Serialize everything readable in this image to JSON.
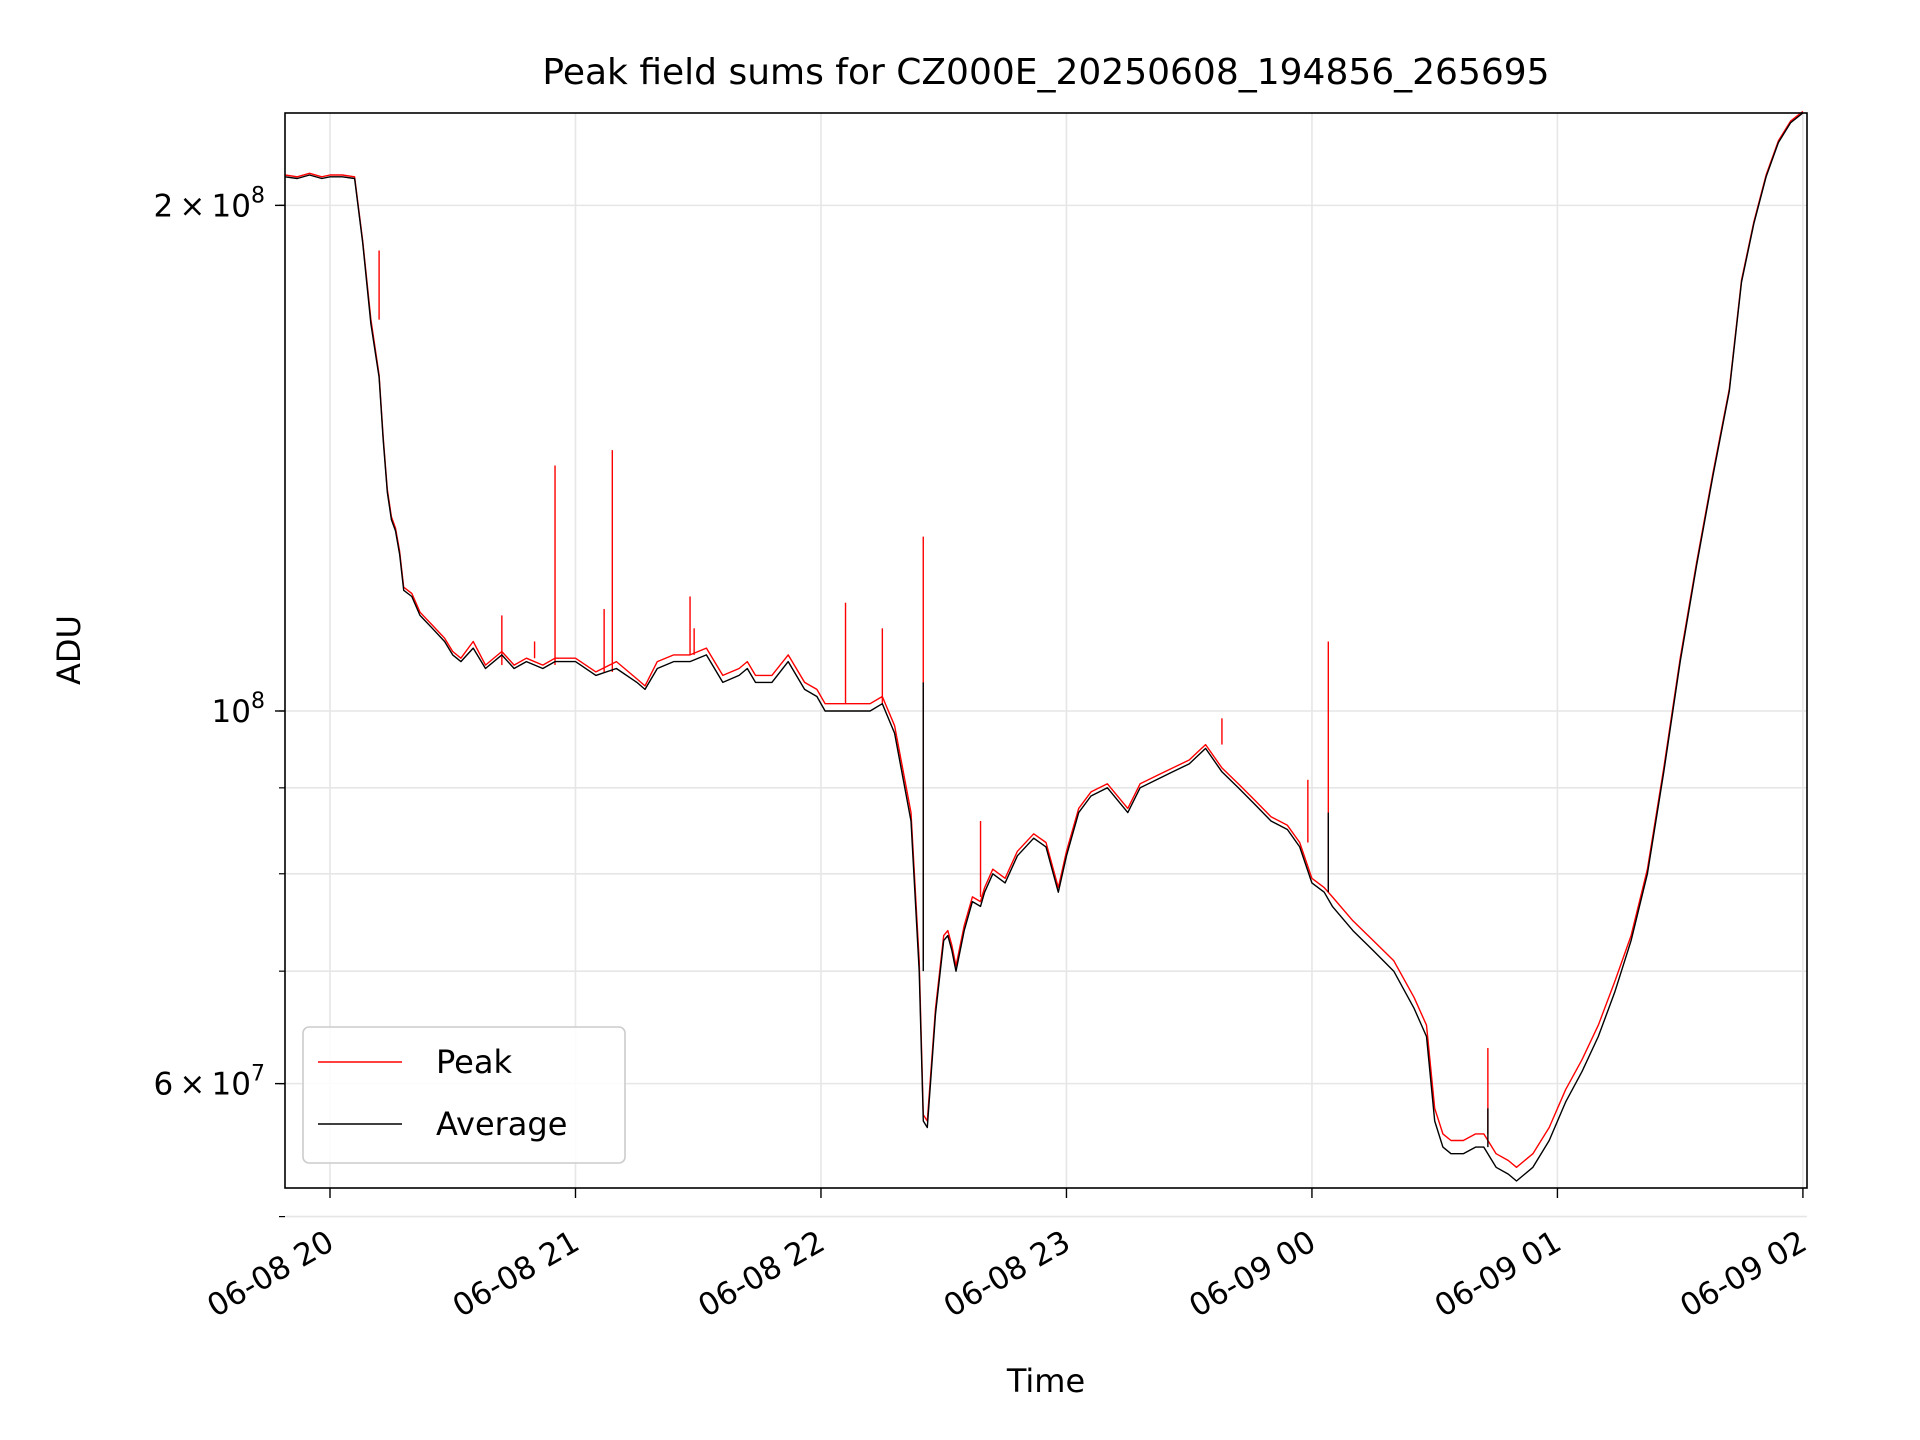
{
  "chart_data": {
    "type": "line",
    "title": "Peak field sums for CZ000E_20250608_194856_265695",
    "xlabel": "Time",
    "ylabel": "ADU",
    "yscale": "log",
    "xlim": [
      "2025-06-08 19:49",
      "2025-06-09 02:01"
    ],
    "ylim": [
      52000000,
      227000000
    ],
    "grid": true,
    "legend_position": "lower-left",
    "xticks": [
      {
        "value": "2025-06-08 20:00",
        "label": "06-08 20"
      },
      {
        "value": "2025-06-08 21:00",
        "label": "06-08 21"
      },
      {
        "value": "2025-06-08 22:00",
        "label": "06-08 22"
      },
      {
        "value": "2025-06-08 23:00",
        "label": "06-08 23"
      },
      {
        "value": "2025-06-09 00:00",
        "label": "06-09 00"
      },
      {
        "value": "2025-06-09 01:00",
        "label": "06-09 01"
      },
      {
        "value": "2025-06-09 02:00",
        "label": "06-09 02"
      }
    ],
    "yticks_major": [
      {
        "value": 200000000,
        "mantissa": "2",
        "exponent": "8"
      },
      {
        "value": 100000000,
        "mantissa": "",
        "exponent": "8"
      },
      {
        "value": 60000000,
        "mantissa": "6",
        "exponent": "7"
      }
    ],
    "yticks_minor": [
      200000000,
      100000000,
      90000000,
      80000000,
      70000000,
      60000000,
      50000000
    ],
    "times_sign": "×",
    "base": "10",
    "series": [
      {
        "name": "Average",
        "color": "#000000",
        "x": [
          "2025-06-08 19:49",
          "2025-06-08 19:52",
          "2025-06-08 19:55",
          "2025-06-08 19:58",
          "2025-06-08 20:00",
          "2025-06-08 20:03",
          "2025-06-08 20:06",
          "2025-06-08 20:08",
          "2025-06-08 20:10",
          "2025-06-08 20:12",
          "2025-06-08 20:13",
          "2025-06-08 20:14",
          "2025-06-08 20:15",
          "2025-06-08 20:16",
          "2025-06-08 20:17",
          "2025-06-08 20:18",
          "2025-06-08 20:20",
          "2025-06-08 20:22",
          "2025-06-08 20:25",
          "2025-06-08 20:28",
          "2025-06-08 20:30",
          "2025-06-08 20:32",
          "2025-06-08 20:35",
          "2025-06-08 20:38",
          "2025-06-08 20:42",
          "2025-06-08 20:45",
          "2025-06-08 20:48",
          "2025-06-08 20:52",
          "2025-06-08 20:55",
          "2025-06-08 21:00",
          "2025-06-08 21:05",
          "2025-06-08 21:10",
          "2025-06-08 21:15",
          "2025-06-08 21:17",
          "2025-06-08 21:20",
          "2025-06-08 21:24",
          "2025-06-08 21:28",
          "2025-06-08 21:32",
          "2025-06-08 21:36",
          "2025-06-08 21:40",
          "2025-06-08 21:42",
          "2025-06-08 21:44",
          "2025-06-08 21:48",
          "2025-06-08 21:52",
          "2025-06-08 21:56",
          "2025-06-08 21:59",
          "2025-06-08 22:01",
          "2025-06-08 22:04",
          "2025-06-08 22:08",
          "2025-06-08 22:12",
          "2025-06-08 22:15",
          "2025-06-08 22:18",
          "2025-06-08 22:22",
          "2025-06-08 22:24",
          "2025-06-08 22:25",
          "2025-06-08 22:26",
          "2025-06-08 22:28",
          "2025-06-08 22:30",
          "2025-06-08 22:31",
          "2025-06-08 22:32",
          "2025-06-08 22:33",
          "2025-06-08 22:35",
          "2025-06-08 22:37",
          "2025-06-08 22:39",
          "2025-06-08 22:40",
          "2025-06-08 22:42",
          "2025-06-08 22:45",
          "2025-06-08 22:48",
          "2025-06-08 22:52",
          "2025-06-08 22:55",
          "2025-06-08 22:58",
          "2025-06-08 23:00",
          "2025-06-08 23:03",
          "2025-06-08 23:06",
          "2025-06-08 23:10",
          "2025-06-08 23:15",
          "2025-06-08 23:18",
          "2025-06-08 23:22",
          "2025-06-08 23:26",
          "2025-06-08 23:30",
          "2025-06-08 23:32",
          "2025-06-08 23:34",
          "2025-06-08 23:38",
          "2025-06-08 23:42",
          "2025-06-08 23:46",
          "2025-06-08 23:50",
          "2025-06-08 23:54",
          "2025-06-08 23:57",
          "2025-06-09 00:00",
          "2025-06-09 00:03",
          "2025-06-09 00:05",
          "2025-06-09 00:10",
          "2025-06-09 00:15",
          "2025-06-09 00:20",
          "2025-06-09 00:25",
          "2025-06-09 00:28",
          "2025-06-09 00:30",
          "2025-06-09 00:32",
          "2025-06-09 00:34",
          "2025-06-09 00:37",
          "2025-06-09 00:40",
          "2025-06-09 00:42",
          "2025-06-09 00:45",
          "2025-06-09 00:48",
          "2025-06-09 00:50",
          "2025-06-09 00:54",
          "2025-06-09 00:58",
          "2025-06-09 01:02",
          "2025-06-09 01:06",
          "2025-06-09 01:10",
          "2025-06-09 01:14",
          "2025-06-09 01:18",
          "2025-06-09 01:22",
          "2025-06-09 01:26",
          "2025-06-09 01:30",
          "2025-06-09 01:34",
          "2025-06-09 01:38",
          "2025-06-09 01:42",
          "2025-06-09 01:45",
          "2025-06-09 01:48",
          "2025-06-09 01:51",
          "2025-06-09 01:54",
          "2025-06-09 01:57",
          "2025-06-09 02:00"
        ],
        "values": [
          208000000,
          207500000,
          208500000,
          207500000,
          208000000,
          208000000,
          207500000,
          190000000,
          170000000,
          158000000,
          145000000,
          135000000,
          130000000,
          128000000,
          124000000,
          118000000,
          117000000,
          114000000,
          112000000,
          110000000,
          108000000,
          107000000,
          109000000,
          106000000,
          108000000,
          106000000,
          107000000,
          106000000,
          107000000,
          107000000,
          105000000,
          106000000,
          104000000,
          103000000,
          106000000,
          107000000,
          107000000,
          108000000,
          104000000,
          105000000,
          106000000,
          104000000,
          104000000,
          107000000,
          103000000,
          102000000,
          100000000,
          100000000,
          100000000,
          100000000,
          101000000,
          97000000,
          86000000,
          70000000,
          57000000,
          56500000,
          66000000,
          73000000,
          73500000,
          72000000,
          70000000,
          74000000,
          77000000,
          76500000,
          78000000,
          80000000,
          79000000,
          82000000,
          84000000,
          83000000,
          78000000,
          82000000,
          87000000,
          89000000,
          90000000,
          87000000,
          90000000,
          91000000,
          92000000,
          93000000,
          94000000,
          95000000,
          92000000,
          90000000,
          88000000,
          86000000,
          85000000,
          83000000,
          79000000,
          78000000,
          76500000,
          74000000,
          72000000,
          70000000,
          66500000,
          64000000,
          57000000,
          55000000,
          54500000,
          54500000,
          55000000,
          55000000,
          53500000,
          53000000,
          52500000,
          53500000,
          55500000,
          58500000,
          61000000,
          64000000,
          68000000,
          73000000,
          80000000,
          92000000,
          107000000,
          122000000,
          138000000,
          155000000,
          180000000,
          195000000,
          208000000,
          218000000,
          224000000,
          227000000
        ]
      },
      {
        "name": "Peak",
        "color": "#ff0000",
        "x": [
          "2025-06-08 19:49",
          "2025-06-08 19:52",
          "2025-06-08 19:55",
          "2025-06-08 19:58",
          "2025-06-08 20:00",
          "2025-06-08 20:03",
          "2025-06-08 20:06",
          "2025-06-08 20:08",
          "2025-06-08 20:10",
          "2025-06-08 20:12",
          "2025-06-08 20:13",
          "2025-06-08 20:14",
          "2025-06-08 20:15",
          "2025-06-08 20:16",
          "2025-06-08 20:17",
          "2025-06-08 20:18",
          "2025-06-08 20:20",
          "2025-06-08 20:22",
          "2025-06-08 20:25",
          "2025-06-08 20:28",
          "2025-06-08 20:30",
          "2025-06-08 20:32",
          "2025-06-08 20:35",
          "2025-06-08 20:38",
          "2025-06-08 20:42",
          "2025-06-08 20:45",
          "2025-06-08 20:48",
          "2025-06-08 20:52",
          "2025-06-08 20:55",
          "2025-06-08 21:00",
          "2025-06-08 21:05",
          "2025-06-08 21:10",
          "2025-06-08 21:15",
          "2025-06-08 21:17",
          "2025-06-08 21:20",
          "2025-06-08 21:24",
          "2025-06-08 21:28",
          "2025-06-08 21:32",
          "2025-06-08 21:36",
          "2025-06-08 21:40",
          "2025-06-08 21:42",
          "2025-06-08 21:44",
          "2025-06-08 21:48",
          "2025-06-08 21:52",
          "2025-06-08 21:56",
          "2025-06-08 21:59",
          "2025-06-08 22:01",
          "2025-06-08 22:04",
          "2025-06-08 22:08",
          "2025-06-08 22:12",
          "2025-06-08 22:15",
          "2025-06-08 22:18",
          "2025-06-08 22:22",
          "2025-06-08 22:24",
          "2025-06-08 22:25",
          "2025-06-08 22:26",
          "2025-06-08 22:28",
          "2025-06-08 22:30",
          "2025-06-08 22:31",
          "2025-06-08 22:32",
          "2025-06-08 22:33",
          "2025-06-08 22:35",
          "2025-06-08 22:37",
          "2025-06-08 22:39",
          "2025-06-08 22:40",
          "2025-06-08 22:42",
          "2025-06-08 22:45",
          "2025-06-08 22:48",
          "2025-06-08 22:52",
          "2025-06-08 22:55",
          "2025-06-08 22:58",
          "2025-06-08 23:00",
          "2025-06-08 23:03",
          "2025-06-08 23:06",
          "2025-06-08 23:10",
          "2025-06-08 23:15",
          "2025-06-08 23:18",
          "2025-06-08 23:22",
          "2025-06-08 23:26",
          "2025-06-08 23:30",
          "2025-06-08 23:32",
          "2025-06-08 23:34",
          "2025-06-08 23:38",
          "2025-06-08 23:42",
          "2025-06-08 23:46",
          "2025-06-08 23:50",
          "2025-06-08 23:54",
          "2025-06-08 23:57",
          "2025-06-09 00:00",
          "2025-06-09 00:03",
          "2025-06-09 00:05",
          "2025-06-09 00:10",
          "2025-06-09 00:15",
          "2025-06-09 00:20",
          "2025-06-09 00:25",
          "2025-06-09 00:28",
          "2025-06-09 00:30",
          "2025-06-09 00:32",
          "2025-06-09 00:34",
          "2025-06-09 00:37",
          "2025-06-09 00:40",
          "2025-06-09 00:42",
          "2025-06-09 00:45",
          "2025-06-09 00:48",
          "2025-06-09 00:50",
          "2025-06-09 00:54",
          "2025-06-09 00:58",
          "2025-06-09 01:02",
          "2025-06-09 01:06",
          "2025-06-09 01:10",
          "2025-06-09 01:14",
          "2025-06-09 01:18",
          "2025-06-09 01:22",
          "2025-06-09 01:26",
          "2025-06-09 01:30",
          "2025-06-09 01:34",
          "2025-06-09 01:38",
          "2025-06-09 01:42",
          "2025-06-09 01:45",
          "2025-06-09 01:48",
          "2025-06-09 01:51",
          "2025-06-09 01:54",
          "2025-06-09 01:57",
          "2025-06-09 02:00"
        ],
        "values": [
          208500000,
          208000000,
          209000000,
          208000000,
          208500000,
          208500000,
          208000000,
          190500000,
          171000000,
          158500000,
          145500000,
          135500000,
          130500000,
          128500000,
          124500000,
          118500000,
          117500000,
          114500000,
          112500000,
          110500000,
          108500000,
          107500000,
          110000000,
          106500000,
          108500000,
          106500000,
          107500000,
          106500000,
          107500000,
          107500000,
          105500000,
          107000000,
          104500000,
          103500000,
          107000000,
          108000000,
          108000000,
          109000000,
          105000000,
          106000000,
          107000000,
          105000000,
          105000000,
          108000000,
          104000000,
          103000000,
          101000000,
          101000000,
          101000000,
          101000000,
          102000000,
          98000000,
          87000000,
          71000000,
          57500000,
          57000000,
          66500000,
          73500000,
          74000000,
          72500000,
          70500000,
          74500000,
          77500000,
          77000000,
          78500000,
          80500000,
          79500000,
          82500000,
          84500000,
          83500000,
          78500000,
          82500000,
          87500000,
          89500000,
          90500000,
          87500000,
          90500000,
          91500000,
          92500000,
          93500000,
          94500000,
          95500000,
          92500000,
          90500000,
          88500000,
          86500000,
          85500000,
          83500000,
          79500000,
          78500000,
          77500000,
          75000000,
          73000000,
          71000000,
          67500000,
          65000000,
          58000000,
          56000000,
          55500000,
          55500000,
          56000000,
          56000000,
          54500000,
          54000000,
          53500000,
          54500000,
          56500000,
          59500000,
          62000000,
          65000000,
          69000000,
          73500000,
          80500000,
          92500000,
          107500000,
          122500000,
          138500000,
          155500000,
          180500000,
          195500000,
          208500000,
          218500000,
          224500000,
          227500000
        ]
      }
    ],
    "spikes": [
      {
        "series": "Peak",
        "x": "2025-06-08 20:12",
        "value": 188000000
      },
      {
        "series": "Peak",
        "x": "2025-06-08 20:42",
        "value": 114000000
      },
      {
        "series": "Peak",
        "x": "2025-06-08 20:50",
        "value": 110000000
      },
      {
        "series": "Peak",
        "x": "2025-06-08 20:55",
        "value": 140000000
      },
      {
        "series": "Peak",
        "x": "2025-06-08 21:07",
        "value": 115000000
      },
      {
        "series": "Peak",
        "x": "2025-06-08 21:09",
        "value": 143000000
      },
      {
        "series": "Peak",
        "x": "2025-06-08 21:28",
        "value": 117000000
      },
      {
        "series": "Peak",
        "x": "2025-06-08 21:29",
        "value": 112000000
      },
      {
        "series": "Peak",
        "x": "2025-06-08 22:06",
        "value": 116000000
      },
      {
        "series": "Peak",
        "x": "2025-06-08 22:15",
        "value": 112000000
      },
      {
        "series": "Peak",
        "x": "2025-06-08 22:25",
        "value": 127000000
      },
      {
        "series": "Peak",
        "x": "2025-06-08 22:39",
        "value": 86000000
      },
      {
        "series": "Peak",
        "x": "2025-06-08 23:38",
        "value": 99000000
      },
      {
        "series": "Peak",
        "x": "2025-06-08 23:59",
        "value": 91000000
      },
      {
        "series": "Peak",
        "x": "2025-06-09 00:04",
        "value": 110000000
      },
      {
        "series": "Peak",
        "x": "2025-06-09 00:43",
        "value": 63000000
      },
      {
        "series": "Average",
        "x": "2025-06-08 22:25",
        "value": 104000000
      },
      {
        "series": "Average",
        "x": "2025-06-09 00:04",
        "value": 87000000
      },
      {
        "series": "Average",
        "x": "2025-06-09 00:43",
        "value": 58000000
      }
    ]
  }
}
